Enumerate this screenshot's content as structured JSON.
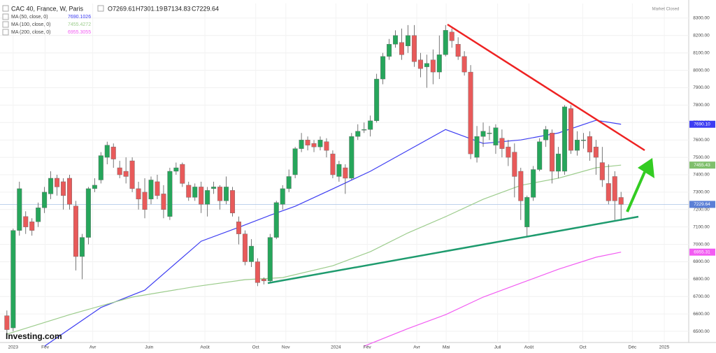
{
  "chart_data": {
    "type": "candlestick",
    "title": "CAC 40, France, W, Paris",
    "ohlc_labels": [
      "O7269.61",
      "H7301.19",
      "B7134.83",
      "C7229.64"
    ],
    "status": "Market Closed",
    "logo": "Investing.com",
    "up_color": "#26a65b",
    "down_color": "#e85a5a",
    "open": [
      6590,
      6520,
      7080,
      7160,
      7130,
      7130,
      7210,
      7290,
      7380,
      7360,
      7380,
      7220,
      6930,
      7040,
      7320,
      7370,
      7500,
      7560,
      7440,
      7420,
      7480,
      7320,
      7300,
      7260,
      7360,
      7290,
      7160,
      7420,
      7460,
      7340,
      7270,
      7330,
      7230,
      7320,
      7330,
      7250,
      7310,
      7130,
      7060,
      6900,
      6900,
      6800,
      6790,
      7040,
      7230,
      7320,
      7400,
      7550,
      7600,
      7580,
      7560,
      7590,
      7520,
      7390,
      7440,
      7380,
      7620,
      7660,
      7660,
      7710,
      7950,
      8080,
      8150,
      8160,
      8140,
      8200,
      8060,
      8020,
      8060,
      7990,
      8090,
      8220,
      8150,
      8080,
      7990,
      7500,
      7620,
      7640,
      7570,
      7610,
      7560,
      7530,
      7420,
      7100,
      7270,
      7430,
      7600,
      7640,
      7420,
      7420,
      7780,
      7540,
      7600,
      7620,
      7560,
      7470,
      7350,
      7390,
      7269.61
    ],
    "high": [
      6620,
      7090,
      7360,
      7190,
      7150,
      7240,
      7330,
      7420,
      7400,
      7380,
      7400,
      7250,
      7060,
      7330,
      7380,
      7530,
      7590,
      7580,
      7480,
      7500,
      7500,
      7360,
      7380,
      7390,
      7400,
      7340,
      7440,
      7470,
      7470,
      7360,
      7350,
      7360,
      7330,
      7360,
      7340,
      7390,
      7330,
      7160,
      7080,
      7030,
      6920,
      6810,
      7060,
      7250,
      7340,
      7430,
      7560,
      7640,
      7620,
      7600,
      7620,
      7610,
      7540,
      7480,
      7460,
      7640,
      7690,
      7700,
      7740,
      7980,
      8100,
      8180,
      8230,
      8240,
      8260,
      8260,
      8100,
      8090,
      8120,
      8200,
      8260,
      8240,
      8190,
      8110,
      8030,
      7680,
      7700,
      7680,
      7690,
      7660,
      7600,
      7580,
      7440,
      7280,
      7450,
      7610,
      7680,
      7660,
      7560,
      7800,
      7800,
      7650,
      7640,
      7650,
      7600,
      7560,
      7460,
      7420,
      7301.19
    ],
    "low": [
      6480,
      6500,
      7050,
      7060,
      7050,
      7100,
      7180,
      7260,
      7280,
      7200,
      7200,
      6850,
      6800,
      7000,
      7300,
      7350,
      7460,
      7440,
      7380,
      7350,
      7300,
      7200,
      7150,
      7230,
      7260,
      7150,
      7140,
      7400,
      7330,
      7250,
      7250,
      7180,
      7160,
      7290,
      7200,
      7230,
      7160,
      7000,
      6880,
      6870,
      6760,
      6770,
      6780,
      7030,
      7200,
      7300,
      7380,
      7530,
      7540,
      7530,
      7540,
      7500,
      7380,
      7360,
      7290,
      7370,
      7600,
      7640,
      7620,
      7700,
      7920,
      8060,
      8130,
      8060,
      8100,
      8020,
      7960,
      7900,
      7920,
      7950,
      8080,
      8130,
      8060,
      7970,
      7490,
      7470,
      7560,
      7600,
      7520,
      7500,
      7450,
      7270,
      7140,
      7040,
      7250,
      7420,
      7560,
      7350,
      7380,
      7400,
      7520,
      7510,
      7550,
      7480,
      7400,
      7330,
      7230,
      7140,
      7134.83
    ],
    "close": [
      6510,
      7080,
      7320,
      7100,
      7080,
      7210,
      7300,
      7380,
      7330,
      7280,
      7230,
      6930,
      7040,
      7320,
      7340,
      7510,
      7570,
      7490,
      7400,
      7390,
      7320,
      7260,
      7200,
      7370,
      7280,
      7200,
      7420,
      7440,
      7350,
      7270,
      7330,
      7230,
      7310,
      7330,
      7250,
      7330,
      7180,
      7060,
      6900,
      6990,
      6780,
      6790,
      7040,
      7240,
      7320,
      7390,
      7550,
      7600,
      7570,
      7560,
      7600,
      7540,
      7400,
      7460,
      7380,
      7620,
      7650,
      7660,
      7710,
      7950,
      8080,
      8150,
      8200,
      8090,
      8200,
      8050,
      8010,
      8040,
      7990,
      8090,
      8230,
      8170,
      8080,
      7990,
      7520,
      7620,
      7650,
      7640,
      7670,
      7550,
      7500,
      7390,
      7250,
      7270,
      7430,
      7590,
      7660,
      7420,
      7520,
      7790,
      7540,
      7600,
      7600,
      7530,
      7500,
      7370,
      7250,
      7250,
      7229.64
    ],
    "series": [
      {
        "name": "MA (50, close, 0)",
        "last_value": 7690.1026,
        "color": "#3d3df2",
        "x": [
          6,
          15,
          22,
          31,
          37,
          42,
          46,
          52,
          58,
          64,
          70,
          76,
          82,
          88,
          94,
          98
        ],
        "values": [
          6415,
          6637,
          6737,
          7018,
          7098,
          7167,
          7219,
          7319,
          7420,
          7540,
          7660,
          7580,
          7600,
          7640,
          7713,
          7690.1026
        ]
      },
      {
        "name": "MA (100, close, 0)",
        "last_value": 7455.4272,
        "color": "#9ccc8c",
        "x": [
          0,
          10,
          20,
          30,
          38,
          44,
          52,
          58,
          64,
          70,
          76,
          82,
          88,
          94,
          98
        ],
        "values": [
          6484,
          6596,
          6697,
          6757,
          6797,
          6809,
          6877,
          6958,
          7066,
          7159,
          7259,
          7339,
          7380,
          7440,
          7455.4272
        ]
      },
      {
        "name": "MA (200, close, 0)",
        "last_value": 6955.3055,
        "color": "#f25cf2",
        "x": [
          57,
          64,
          70,
          76,
          82,
          88,
          94,
          98
        ],
        "values": [
          6415,
          6516,
          6596,
          6697,
          6777,
          6857,
          6926,
          6955.3055
        ]
      }
    ],
    "price_tags": [
      {
        "value": 7690.1,
        "label": "7690.10",
        "color": "#3d3df2"
      },
      {
        "value": 7455.43,
        "label": "7455.43",
        "color": "#7fbf6c"
      },
      {
        "value": 7229.64,
        "label": "7229.64",
        "color": "#5b7fd6"
      },
      {
        "value": 6955.31,
        "label": "6955.31",
        "color": "#f25cf2"
      }
    ],
    "last_price": 7229.64,
    "xlim": [
      -1.1,
      108.8
    ],
    "ylim": [
      6444,
      8384
    ],
    "xticks": [
      {
        "value": 1.0,
        "label": "2023"
      },
      {
        "value": 6.1,
        "label": "Fév"
      },
      {
        "value": 13.7,
        "label": "Avr"
      },
      {
        "value": 22.7,
        "label": "Juin"
      },
      {
        "value": 31.6,
        "label": "Août"
      },
      {
        "value": 39.7,
        "label": "Oct"
      },
      {
        "value": 44.5,
        "label": "Nov"
      },
      {
        "value": 52.5,
        "label": "2024"
      },
      {
        "value": 57.5,
        "label": "Fév"
      },
      {
        "value": 65.4,
        "label": "Avr"
      },
      {
        "value": 70.1,
        "label": "Mai"
      },
      {
        "value": 78.3,
        "label": "Juil"
      },
      {
        "value": 83.3,
        "label": "Août"
      },
      {
        "value": 91.9,
        "label": "Oct"
      },
      {
        "value": 99.8,
        "label": "Déc"
      },
      {
        "value": 104.9,
        "label": "2025"
      }
    ],
    "yticks": [
      {
        "value": 6500,
        "label": "6500.00"
      },
      {
        "value": 6600,
        "label": "6600.00"
      },
      {
        "value": 6700,
        "label": "6700.00"
      },
      {
        "value": 6800,
        "label": "6800.00"
      },
      {
        "value": 6900,
        "label": "6900.00"
      },
      {
        "value": 7000,
        "label": "7000.00"
      },
      {
        "value": 7100,
        "label": "7100.00"
      },
      {
        "value": 7200,
        "label": "7200.00"
      },
      {
        "value": 7300,
        "label": "7300.00"
      },
      {
        "value": 7400,
        "label": "7400.00"
      },
      {
        "value": 7500,
        "label": "7500.00"
      },
      {
        "value": 7600,
        "label": "7600.00"
      },
      {
        "value": 7700,
        "label": "7700.00"
      },
      {
        "value": 7800,
        "label": "7800.00"
      },
      {
        "value": 7900,
        "label": "7900.00"
      },
      {
        "value": 8000,
        "label": "8000.00"
      },
      {
        "value": 8100,
        "label": "8100.00"
      },
      {
        "value": 8200,
        "label": "8200.00"
      },
      {
        "value": 8300,
        "label": "8300.00"
      }
    ]
  }
}
